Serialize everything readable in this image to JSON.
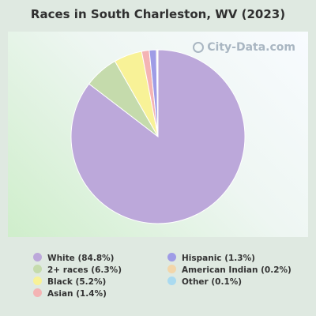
{
  "title": "Races in South Charleston, WV (2023)",
  "watermark": "City-Data.com",
  "chart_data": {
    "type": "pie",
    "title": "Races in South Charleston, WV (2023)",
    "series": [
      {
        "name": "White (84.8%)",
        "label": "White",
        "value": 84.8,
        "color": "#bca8da"
      },
      {
        "name": "2+ races (6.3%)",
        "label": "2+ races",
        "value": 6.3,
        "color": "#c5dbac"
      },
      {
        "name": "Black (5.2%)",
        "label": "Black",
        "value": 5.2,
        "color": "#f8f297"
      },
      {
        "name": "Asian (1.4%)",
        "label": "Asian",
        "value": 1.4,
        "color": "#f4b4b4"
      },
      {
        "name": "Hispanic (1.3%)",
        "label": "Hispanic",
        "value": 1.3,
        "color": "#9f9ce6"
      },
      {
        "name": "American Indian (0.2%)",
        "label": "American Indian",
        "value": 0.2,
        "color": "#f2d6aa"
      },
      {
        "name": "Other (0.1%)",
        "label": "Other",
        "value": 0.1,
        "color": "#aadaf0"
      }
    ],
    "legend": [
      {
        "text": "White (84.8%)",
        "color": "#bca8da"
      },
      {
        "text": "2+ races (6.3%)",
        "color": "#c5dbac"
      },
      {
        "text": "Black (5.2%)",
        "color": "#f8f297"
      },
      {
        "text": "Asian (1.4%)",
        "color": "#f4b4b4"
      },
      {
        "text": "Hispanic (1.3%)",
        "color": "#9f9ce6"
      },
      {
        "text": "American Indian (0.2%)",
        "color": "#f2d6aa"
      },
      {
        "text": "Other (0.1%)",
        "color": "#aadaf0"
      }
    ]
  }
}
